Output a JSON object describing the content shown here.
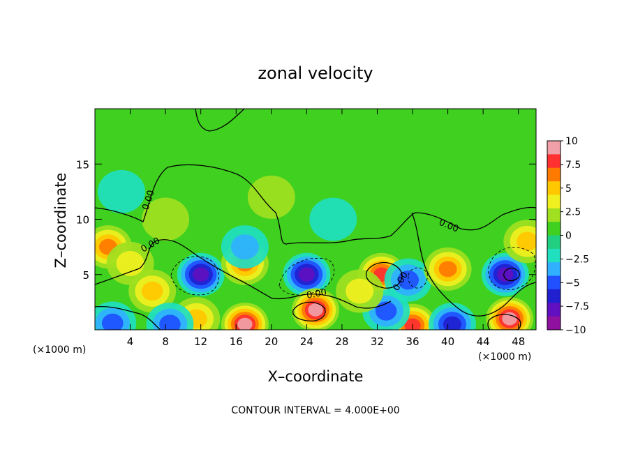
{
  "chart_data": {
    "type": "heatmap",
    "title": "zonal velocity",
    "xlabel": "X–coordinate",
    "ylabel": "Z–coordinate",
    "x_unit_left": "(×1000 m)",
    "x_unit_right": "(×1000 m)",
    "footer": "CONTOUR INTERVAL = 4.000E+00",
    "xlim": [
      0,
      50
    ],
    "ylim": [
      0,
      20
    ],
    "x_ticks": [
      4,
      8,
      12,
      16,
      20,
      24,
      28,
      32,
      36,
      40,
      44,
      48
    ],
    "y_ticks": [
      5,
      10,
      15
    ],
    "contour_label": "0.00",
    "colorbar": {
      "min": -10,
      "max": 10,
      "ticks": [
        "10",
        "7.5",
        "5",
        "2.5",
        "0",
        "−2.5",
        "−5",
        "−7.5",
        "−10"
      ],
      "colors": [
        "#f0a0a8",
        "#ff3030",
        "#ff7a00",
        "#ffc800",
        "#f0f020",
        "#a0e020",
        "#40d020",
        "#20d080",
        "#20e0c0",
        "#30b0ff",
        "#2050ff",
        "#2020d0",
        "#6010c0",
        "#9010a0"
      ]
    },
    "features": [
      {
        "x": 1.5,
        "z": 7.5,
        "v": 6
      },
      {
        "x": 4,
        "z": 6,
        "v": 3
      },
      {
        "x": 6.5,
        "z": 3.5,
        "v": 4
      },
      {
        "x": 12,
        "z": 5,
        "v": -8
      },
      {
        "x": 17,
        "z": 6,
        "v": 6
      },
      {
        "x": 17,
        "z": 7.5,
        "v": -3
      },
      {
        "x": 17,
        "z": 0.5,
        "v": 9
      },
      {
        "x": 11.5,
        "z": 1,
        "v": 4
      },
      {
        "x": 24,
        "z": 5,
        "v": -7
      },
      {
        "x": 25,
        "z": 1.8,
        "v": 9
      },
      {
        "x": 32.5,
        "z": 5,
        "v": 7
      },
      {
        "x": 35.5,
        "z": 4.5,
        "v": -5
      },
      {
        "x": 36,
        "z": 0.4,
        "v": 7
      },
      {
        "x": 40,
        "z": 5.5,
        "v": 6
      },
      {
        "x": 40.5,
        "z": 0.5,
        "v": -6
      },
      {
        "x": 46.5,
        "z": 5,
        "v": -8
      },
      {
        "x": 47,
        "z": 1,
        "v": 9
      },
      {
        "x": 49,
        "z": 8,
        "v": 5
      },
      {
        "x": 2,
        "z": 0.6,
        "v": -5
      },
      {
        "x": 8.5,
        "z": 0.5,
        "v": -4
      },
      {
        "x": 33,
        "z": 1.7,
        "v": -4
      },
      {
        "x": 3,
        "z": 12.5,
        "v": -2
      },
      {
        "x": 27,
        "z": 10,
        "v": -2
      },
      {
        "x": 20,
        "z": 12,
        "v": 1
      },
      {
        "x": 8,
        "z": 10,
        "v": 1
      },
      {
        "x": 30,
        "z": 3.5,
        "v": 3
      }
    ]
  }
}
